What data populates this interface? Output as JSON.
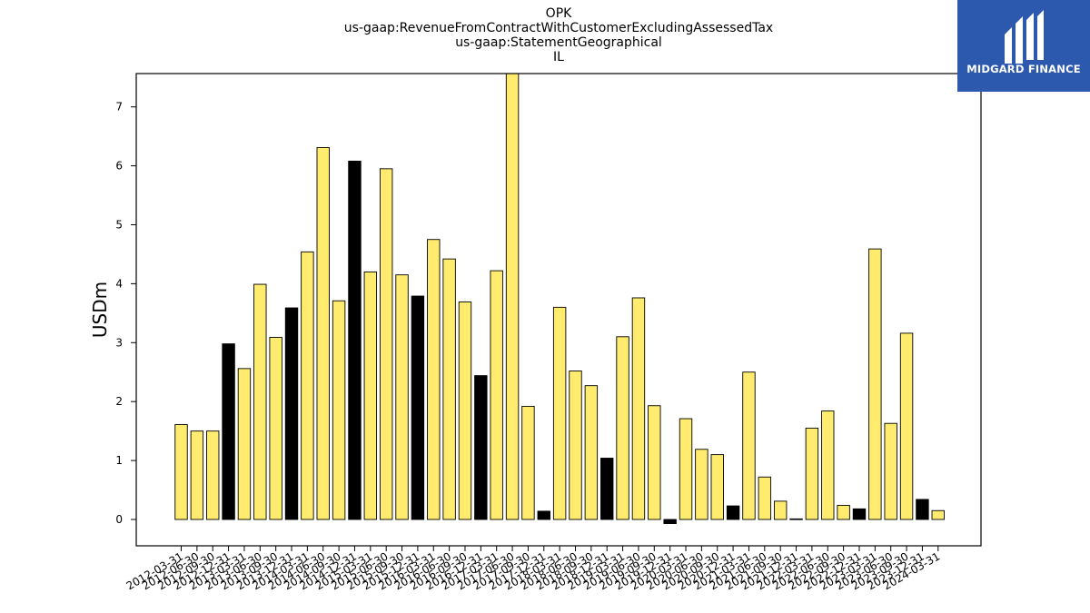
{
  "titles": [
    "OPK",
    "us-gaap:RevenueFromContractWithCustomerExcludingAssessedTax",
    "us-gaap:StatementGeographical",
    "IL"
  ],
  "logo": {
    "name": "MIDGARD FINANCE",
    "bg": "#2c58ad"
  },
  "colors": {
    "positive": "#ffec6e",
    "highlight": "#000000"
  },
  "chart_data": {
    "type": "bar",
    "title": "OPK",
    "ylabel": "USDm",
    "xlabel": "",
    "ylim": [
      -0.45,
      7.6
    ],
    "yticks": [
      0,
      1,
      2,
      3,
      4,
      5,
      6,
      7
    ],
    "grid": false,
    "categories": [
      "2012-03-31",
      "2012-06-30",
      "2012-09-30",
      "2012-12-31",
      "2013-03-31",
      "2013-06-30",
      "2013-09-30",
      "2013-12-31",
      "2014-03-31",
      "2014-06-30",
      "2014-09-30",
      "2014-12-31",
      "2015-03-31",
      "2015-06-30",
      "2015-09-30",
      "2015-12-31",
      "2016-03-31",
      "2016-06-30",
      "2016-09-30",
      "2016-12-31",
      "2017-03-31",
      "2017-06-30",
      "2017-09-30",
      "2017-12-31",
      "2018-03-31",
      "2018-06-30",
      "2018-09-30",
      "2018-12-31",
      "2019-03-31",
      "2019-06-30",
      "2019-09-30",
      "2019-12-31",
      "2020-03-31",
      "2020-06-30",
      "2020-09-30",
      "2020-12-31",
      "2021-03-31",
      "2021-06-30",
      "2021-09-30",
      "2021-12-31",
      "2022-03-31",
      "2022-06-30",
      "2022-09-30",
      "2022-12-31",
      "2023-03-31",
      "2023-06-30",
      "2023-09-30",
      "2023-12-31",
      "2024-03-31"
    ],
    "values": [
      1.61,
      1.5,
      1.5,
      2.98,
      2.56,
      3.99,
      3.09,
      3.59,
      4.54,
      6.31,
      3.71,
      6.08,
      4.2,
      5.95,
      4.15,
      3.79,
      4.75,
      4.42,
      3.69,
      2.44,
      4.22,
      7.6,
      1.92,
      0.14,
      3.6,
      2.52,
      2.27,
      1.04,
      3.1,
      3.76,
      1.93,
      -0.07,
      1.71,
      1.19,
      1.1,
      0.23,
      2.5,
      0.72,
      0.31,
      0.01,
      1.55,
      1.84,
      0.24,
      0.18,
      4.59,
      1.63,
      3.16,
      0.34,
      0.15
    ],
    "highlight": [
      false,
      false,
      false,
      true,
      false,
      false,
      false,
      true,
      false,
      false,
      false,
      true,
      false,
      false,
      false,
      true,
      false,
      false,
      false,
      true,
      false,
      false,
      false,
      true,
      false,
      false,
      false,
      true,
      false,
      false,
      false,
      true,
      false,
      false,
      false,
      true,
      false,
      false,
      false,
      true,
      false,
      false,
      false,
      true,
      false,
      false,
      false,
      true,
      false
    ]
  }
}
